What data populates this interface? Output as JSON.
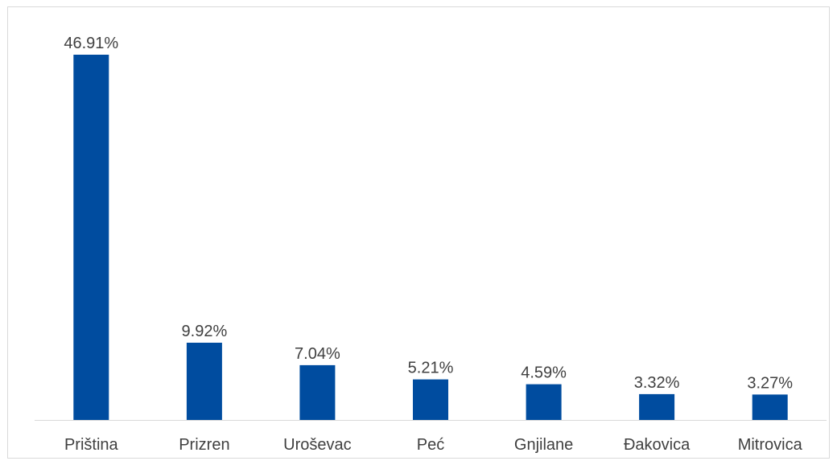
{
  "chart_data": {
    "type": "bar",
    "categories": [
      "Priština",
      "Prizren",
      "Uroševac",
      "Peć",
      "Gnjilane",
      "Đakovica",
      "Mitrovica"
    ],
    "values": [
      46.91,
      9.92,
      7.04,
      5.21,
      4.59,
      3.32,
      3.27
    ],
    "data_labels": [
      "46.91%",
      "9.92%",
      "7.04%",
      "5.21%",
      "4.59%",
      "3.32%",
      "3.27%"
    ],
    "title": "",
    "xlabel": "",
    "ylabel": "",
    "ylim": [
      0,
      46.91
    ],
    "grid": false,
    "legend": "none",
    "bar_color": "#004c9f",
    "axis_color": "#d9d9d9",
    "text_color": "#404040"
  }
}
